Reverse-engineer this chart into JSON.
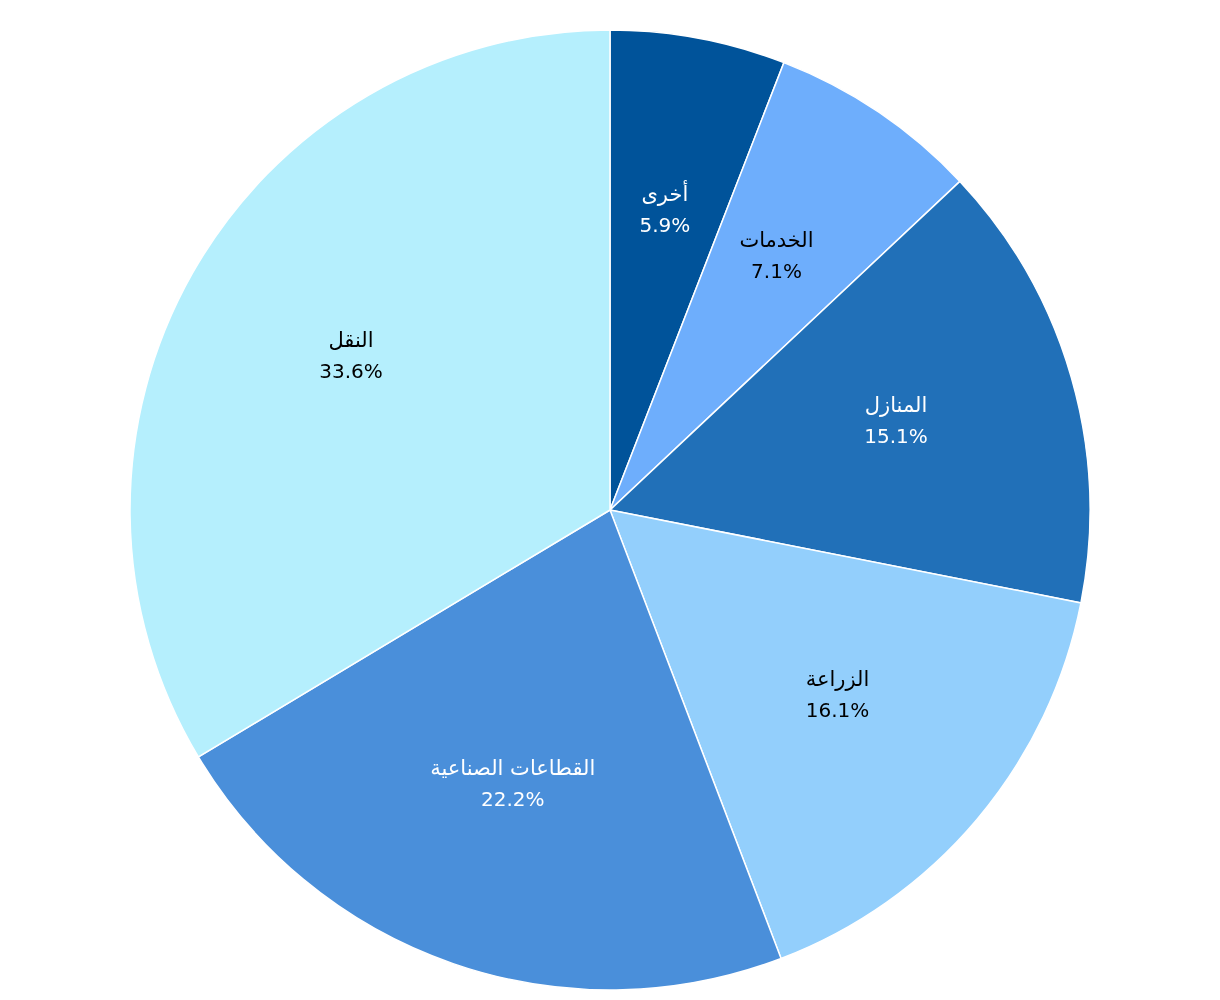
{
  "chart_data": {
    "type": "pie",
    "categories": [
      "أخرى",
      "الخدمات",
      "المنازل",
      "الزراعة",
      "القطاعات الصناعية",
      "النقل"
    ],
    "values": [
      5.9,
      7.1,
      15.1,
      16.1,
      22.2,
      33.6
    ],
    "colors": [
      "#00539a",
      "#6eaefc",
      "#2170b8",
      "#93cffc",
      "#4a8fda",
      "#b5effd"
    ],
    "value_labels": [
      "5.9%",
      "7.1%",
      "15.1%",
      "16.1%",
      "22.2%",
      "33.6%"
    ],
    "legend": false
  }
}
